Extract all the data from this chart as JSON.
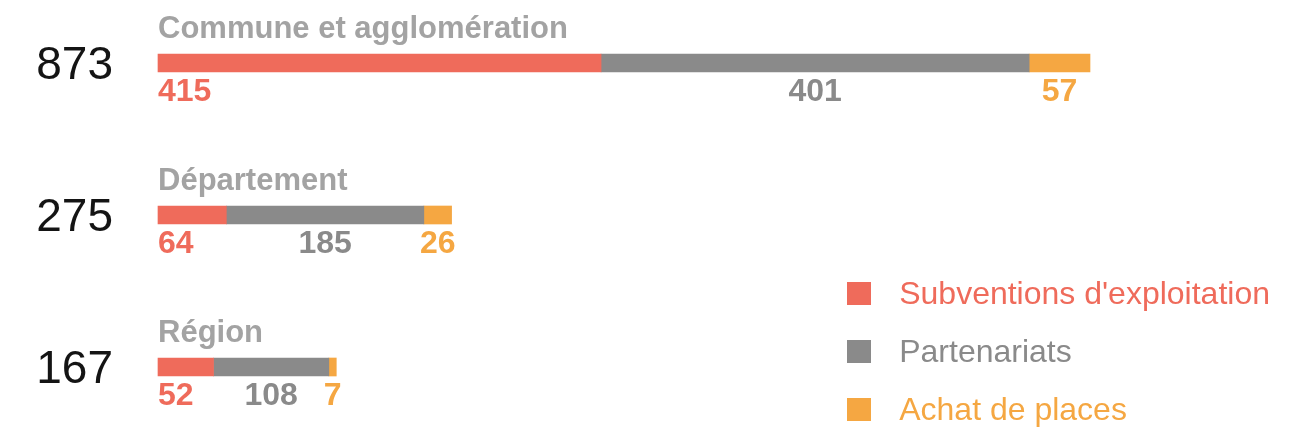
{
  "chart_data": {
    "type": "bar",
    "orientation": "horizontal",
    "stacked": true,
    "categories": [
      "Commune et agglomération",
      "Département",
      "Région"
    ],
    "series": [
      {
        "name": "Subventions d'exploitation",
        "color": "#ef6b5b",
        "values": [
          415,
          64,
          52
        ]
      },
      {
        "name": "Partenariats",
        "color": "#8a8a8a",
        "values": [
          401,
          185,
          108
        ]
      },
      {
        "name": "Achat de places",
        "color": "#f5a742",
        "values": [
          57,
          26,
          7
        ]
      }
    ],
    "data_labels": true,
    "totals": [
      "873",
      "275",
      "167"
    ],
    "legend": "bottom right"
  }
}
